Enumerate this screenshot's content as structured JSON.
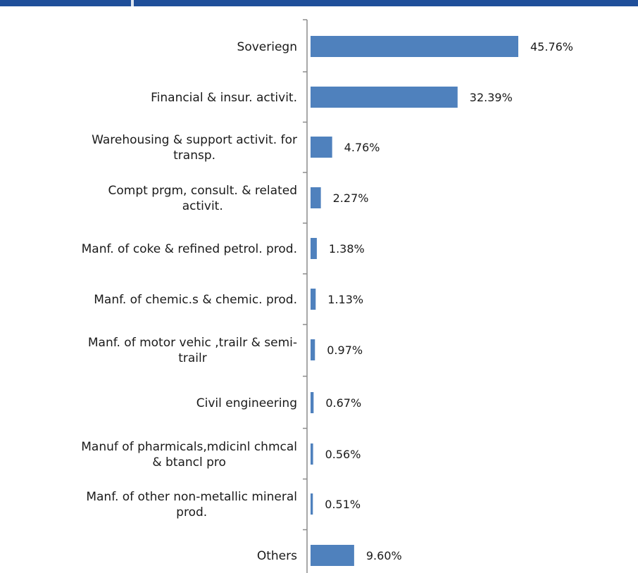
{
  "colors": {
    "bar": "#4f81bd",
    "header": "#1f4f9a",
    "axis": "#8c8c8c"
  },
  "chart_data": {
    "type": "bar",
    "orientation": "horizontal",
    "categories": [
      "Soveriegn",
      "Financial & insur. activit.",
      "Warehousing & support activit. for transp.",
      "Compt prgm, consult. & related activit.",
      "Manf. of coke & refined petrol. prod.",
      "Manf. of chemic.s & chemic. prod.",
      "Manf. of motor vehic ,trailr & semi-trailr",
      "Civil engineering",
      "Manuf of pharmicals,mdicinl chmcal & btancl pro",
      "Manf. of other non-metallic mineral prod.",
      "Others"
    ],
    "category_lines": [
      [
        "Soveriegn"
      ],
      [
        "Financial & insur. activit."
      ],
      [
        "Warehousing & support activit. for",
        "transp."
      ],
      [
        "Compt prgm, consult. & related",
        "activit."
      ],
      [
        "Manf. of coke & refined petrol. prod."
      ],
      [
        "Manf. of chemic.s & chemic. prod."
      ],
      [
        "Manf. of motor vehic ,trailr & semi-",
        "trailr"
      ],
      [
        "Civil engineering"
      ],
      [
        "Manuf of pharmicals,mdicinl chmcal",
        "& btancl pro"
      ],
      [
        "Manf. of other non-metallic mineral",
        "prod."
      ],
      [
        "Others"
      ]
    ],
    "values": [
      45.76,
      32.39,
      4.76,
      2.27,
      1.38,
      1.13,
      0.97,
      0.67,
      0.56,
      0.51,
      9.6
    ],
    "value_labels": [
      "45.76%",
      "32.39%",
      "4.76%",
      "2.27%",
      "1.38%",
      "1.13%",
      "0.97%",
      "0.67%",
      "0.56%",
      "0.51%",
      "9.60%"
    ],
    "xlim": [
      0,
      47
    ],
    "grid": false,
    "legend": "none"
  }
}
